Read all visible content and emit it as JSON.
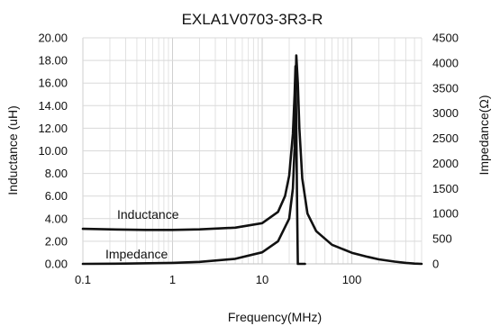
{
  "chart_data": {
    "type": "line",
    "title": "EXLA1V0703-3R3-R",
    "xlabel": "Frequency(MHz)",
    "ylabel_left": "Inductance (uH)",
    "ylabel_right": "Impedance(Ω)",
    "x_scale": "log",
    "xlim": [
      0.1,
      600
    ],
    "x_ticks": [
      "0.1",
      "1",
      "10",
      "100"
    ],
    "ylim_left": [
      0,
      20
    ],
    "y_ticks_left": [
      "0.00",
      "2.00",
      "4.00",
      "6.00",
      "8.00",
      "10.00",
      "12.00",
      "14.00",
      "16.00",
      "18.00",
      "20.00"
    ],
    "ylim_right": [
      0,
      4500
    ],
    "y_ticks_right": [
      "0",
      "500",
      "1000",
      "1500",
      "2000",
      "2500",
      "3000",
      "3500",
      "4000",
      "4500"
    ],
    "grid": true,
    "annotations": [
      "Inductance",
      "Impedance"
    ],
    "series": [
      {
        "name": "Inductance",
        "axis": "left",
        "x": [
          0.1,
          0.2,
          0.5,
          1,
          2,
          5,
          10,
          15,
          18,
          20,
          22,
          23,
          23.5,
          24,
          24.5,
          25,
          26,
          30
        ],
        "y": [
          3.1,
          3.05,
          3.0,
          3.0,
          3.05,
          3.2,
          3.6,
          4.6,
          6.0,
          7.8,
          11.5,
          15.0,
          17.5,
          12.0,
          5.0,
          0.0,
          0.0,
          0.0
        ]
      },
      {
        "name": "Impedance",
        "axis": "right",
        "x": [
          0.1,
          0.3,
          1,
          2,
          5,
          10,
          15,
          20,
          22,
          23,
          24,
          25,
          26,
          28,
          32,
          40,
          60,
          100,
          150,
          200,
          300,
          400,
          500,
          600
        ],
        "y": [
          0,
          5,
          20,
          40,
          100,
          230,
          450,
          900,
          1500,
          2300,
          4150,
          3600,
          2700,
          1700,
          1000,
          650,
          380,
          220,
          140,
          90,
          45,
          20,
          5,
          0
        ]
      }
    ]
  }
}
